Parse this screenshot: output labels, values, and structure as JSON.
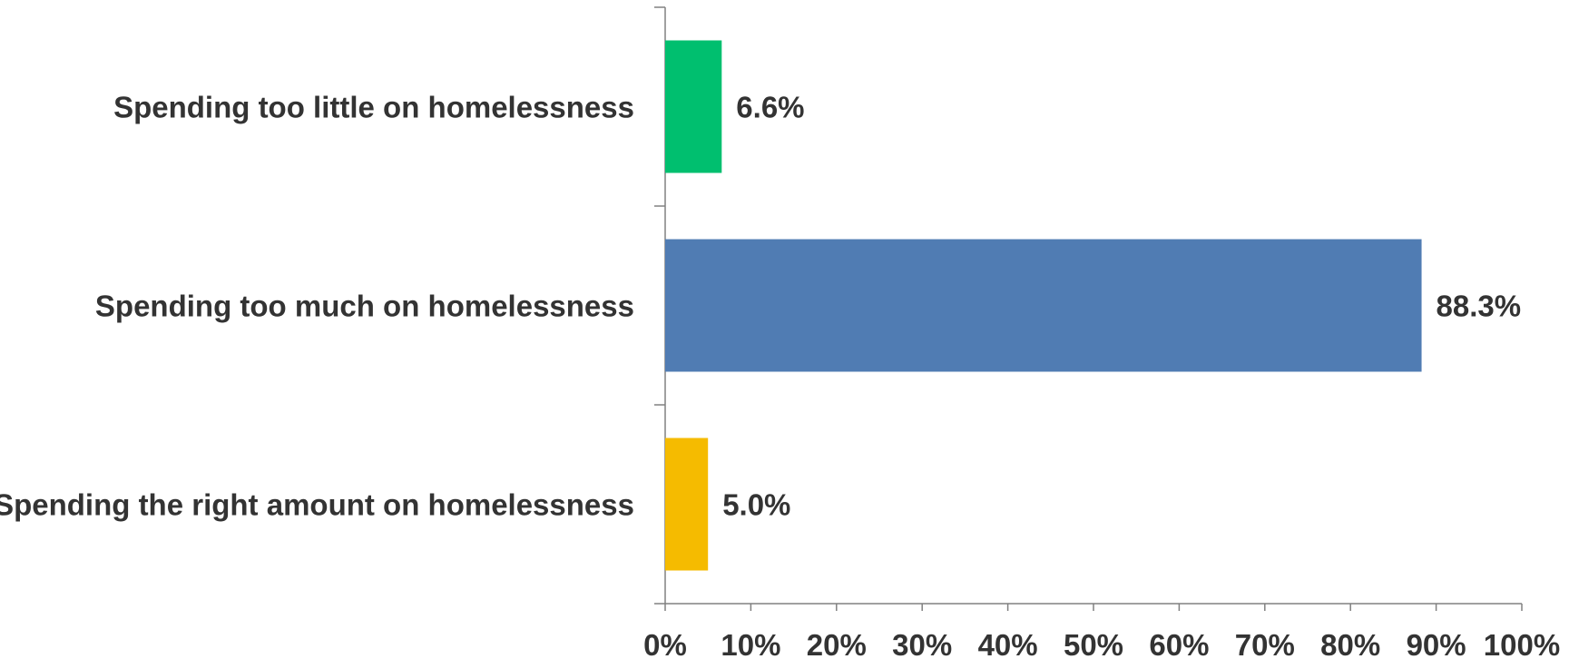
{
  "chart_data": {
    "type": "bar",
    "orientation": "horizontal",
    "title": "",
    "xlabel": "",
    "ylabel": "",
    "categories": [
      "Spending too little on homelessness",
      "Spending too much on homelessness",
      "Spending the right amount on homelessness"
    ],
    "values": [
      6.6,
      88.3,
      5.0
    ],
    "value_labels": [
      "6.6%",
      "88.3%",
      "5.0%"
    ],
    "colors": [
      "#00BF6F",
      "#507CB3",
      "#F5BB00"
    ],
    "xlim": [
      0,
      100
    ],
    "xticks": [
      0,
      10,
      20,
      30,
      40,
      50,
      60,
      70,
      80,
      90,
      100
    ],
    "xtick_labels": [
      "0%",
      "10%",
      "20%",
      "30%",
      "40%",
      "50%",
      "60%",
      "70%",
      "80%",
      "90%",
      "100%"
    ],
    "grid": false,
    "legend": "none"
  }
}
